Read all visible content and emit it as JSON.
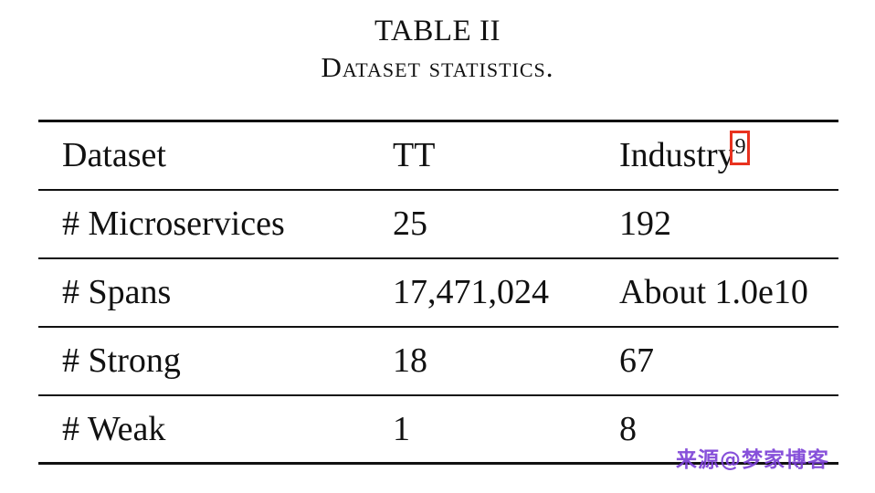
{
  "caption": {
    "label": "TABLE II",
    "title": "Dataset statistics."
  },
  "table": {
    "headers": [
      "Dataset",
      "TT",
      "Industry"
    ],
    "header_footnote": "9",
    "rows": [
      [
        "# Microservices",
        "25",
        "192"
      ],
      [
        "# Spans",
        "17,471,024",
        "About 1.0e10"
      ],
      [
        "# Strong",
        "18",
        "67"
      ],
      [
        "# Weak",
        "1",
        "8"
      ]
    ]
  },
  "highlight_color": "#e8321f",
  "watermark": "来源@梦家博客",
  "watermark_color": "#7b3fd6"
}
